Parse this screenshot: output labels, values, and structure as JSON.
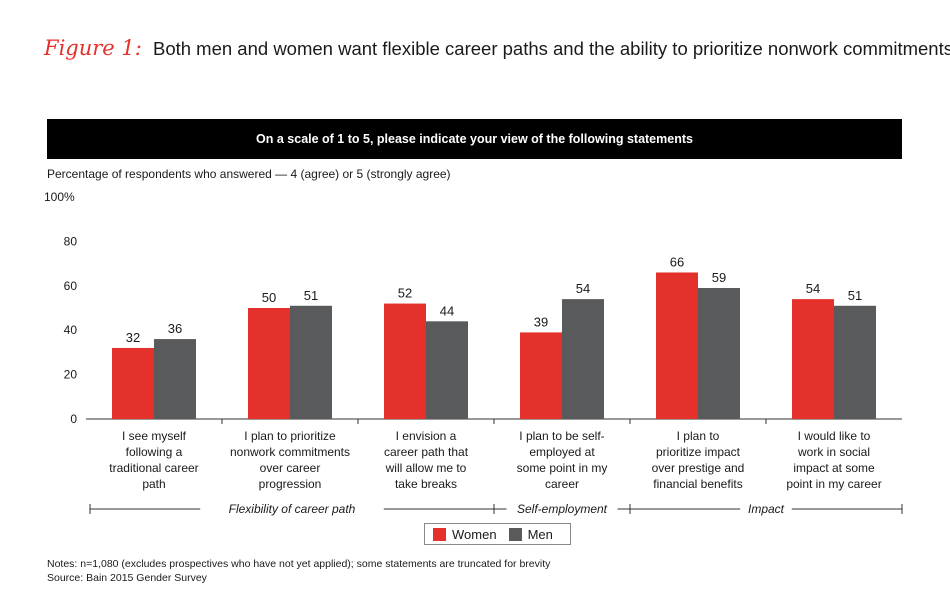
{
  "figure_label": "Figure 1:",
  "title_text": "Both men and women want flexible career paths and the ability to prioritize nonwork commitments",
  "banner_text": "On a scale of 1 to 5, please indicate your view of the following statements",
  "subtitle_text": "Percentage of respondents who answered — 4 (agree) or 5 (strongly agree)",
  "notes": {
    "line1": "Notes: n=1,080 (excludes prospectives who have not yet applied); some statements are truncated for brevity",
    "line2": "Source: Bain 2015 Gender Survey"
  },
  "colors": {
    "women": "#e4312b",
    "men": "#595a5c",
    "accent": "#e4312b"
  },
  "legend": {
    "women_label": "Women",
    "men_label": "Men"
  },
  "chart_data": {
    "type": "bar",
    "ylim": [
      0,
      100
    ],
    "yticks": [
      "0",
      "20",
      "40",
      "60",
      "80",
      "100%"
    ],
    "categories": [
      [
        "I see myself",
        "following a",
        "traditional career",
        "path"
      ],
      [
        "I plan to prioritize",
        "nonwork commitments",
        "over career",
        "progression"
      ],
      [
        "I envision a",
        "career path that",
        "will allow me to",
        "take breaks"
      ],
      [
        "I plan to be self-",
        "employed at",
        "some point in my",
        "career"
      ],
      [
        "I plan to",
        "prioritize impact",
        "over prestige and",
        "financial benefits"
      ],
      [
        "I would like to",
        "work in social",
        "impact at some",
        "point in my career"
      ]
    ],
    "series": [
      {
        "name": "Women",
        "values": [
          32,
          50,
          52,
          39,
          66,
          54
        ]
      },
      {
        "name": "Men",
        "values": [
          36,
          51,
          44,
          54,
          59,
          51
        ]
      }
    ],
    "groups": [
      {
        "label": "Flexibility of career path",
        "from": 0,
        "to": 2
      },
      {
        "label": "Self-employment",
        "from": 3,
        "to": 3
      },
      {
        "label": "Impact",
        "from": 4,
        "to": 5
      }
    ]
  }
}
